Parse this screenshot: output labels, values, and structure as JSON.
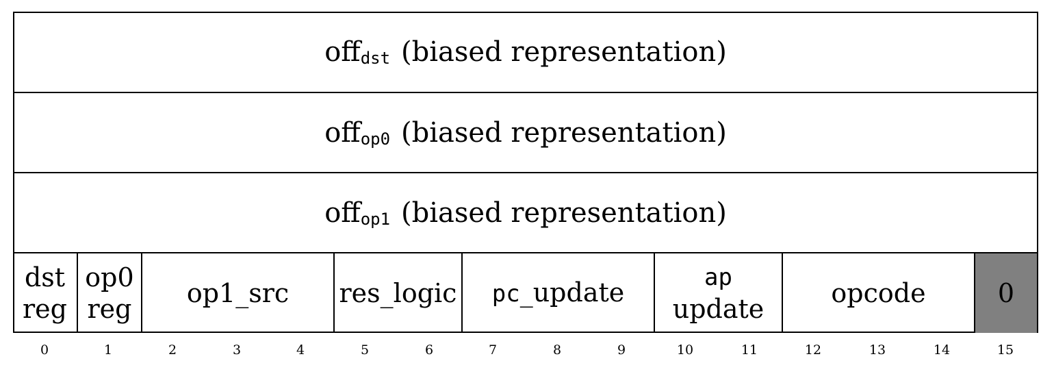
{
  "offsets": [
    {
      "name": "off",
      "sub": "dst",
      "desc": "(biased representation)"
    },
    {
      "name": "off",
      "sub": "op0",
      "desc": "(biased representation)"
    },
    {
      "name": "off",
      "sub": "op1",
      "desc": "(biased representation)"
    }
  ],
  "flags": {
    "dst_reg": {
      "line1": "dst",
      "line2": "reg"
    },
    "op0_reg": {
      "line1": "op0",
      "line2": "reg"
    },
    "op1_src": "op1_src",
    "res_logic": "res_logic",
    "pc_update": {
      "mono": "pc",
      "rest": "_update"
    },
    "ap_update": {
      "line1": "ap",
      "line2": "update"
    },
    "opcode": "opcode",
    "fixed_bit": "0"
  },
  "bit_numbers": [
    "0",
    "1",
    "2",
    "3",
    "4",
    "5",
    "6",
    "7",
    "8",
    "9",
    "10",
    "11",
    "12",
    "13",
    "14",
    "15"
  ],
  "colors": {
    "fixed_bit_fill": "#808080",
    "border": "#000000"
  }
}
